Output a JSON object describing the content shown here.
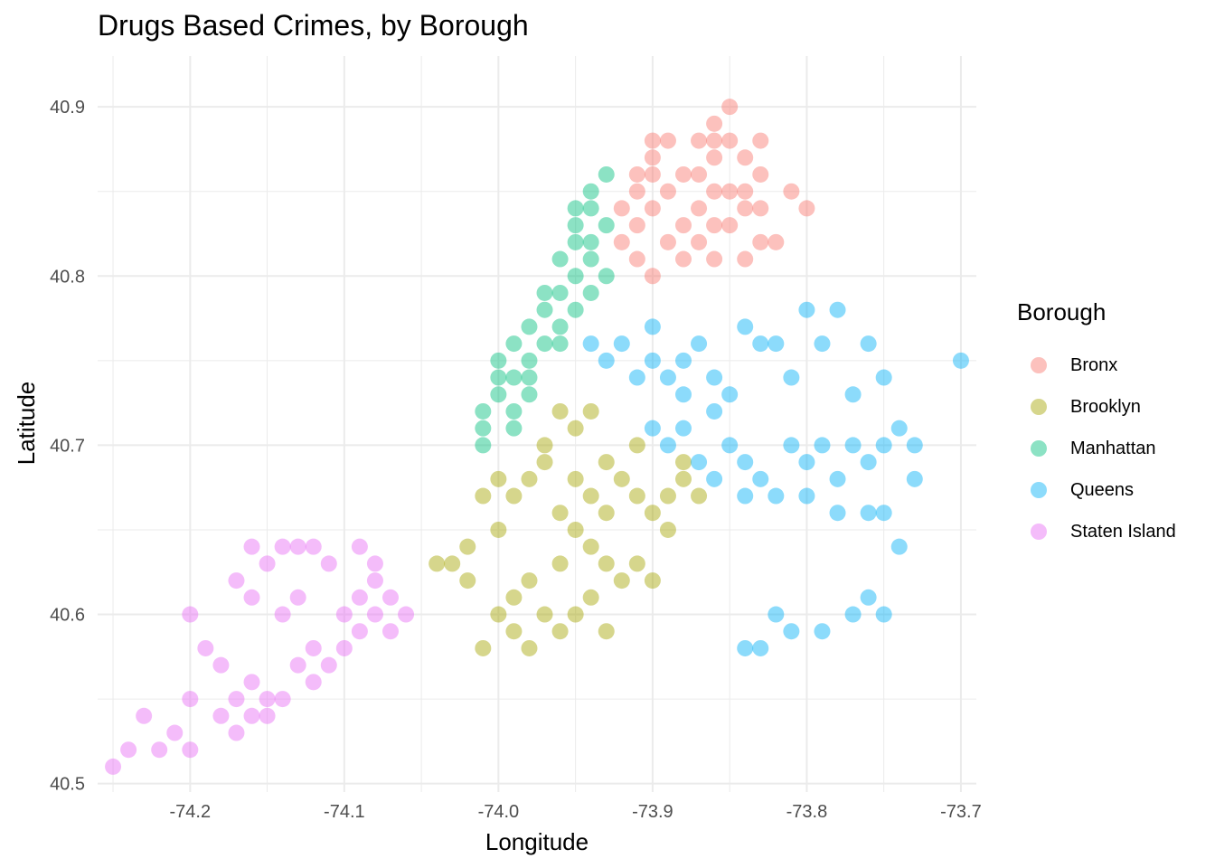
{
  "title": "Drugs Based Crimes, by Borough",
  "chart_data": {
    "type": "scatter",
    "title": "Drugs Based Crimes, by Borough",
    "xlabel": "Longitude",
    "ylabel": "Latitude",
    "xlim": [
      -74.26,
      -73.69
    ],
    "ylim": [
      40.495,
      40.93
    ],
    "x_ticks": [
      -74.2,
      -74.1,
      -74.0,
      -73.9,
      -73.8,
      -73.7
    ],
    "x_tick_labels": [
      "-74.2",
      "-74.1",
      "-74.0",
      "-73.9",
      "-73.8",
      "-73.7"
    ],
    "y_ticks": [
      40.5,
      40.6,
      40.7,
      40.8,
      40.9
    ],
    "y_tick_labels": [
      "40.5",
      "40.6",
      "40.7",
      "40.8",
      "40.9"
    ],
    "grid": true,
    "legend_title": "Borough",
    "legend_position": "right",
    "series": [
      {
        "name": "Bronx",
        "color": "#F8766D",
        "points": [
          [
            -73.91,
            40.83
          ],
          [
            -73.9,
            40.84
          ],
          [
            -73.89,
            40.85
          ],
          [
            -73.88,
            40.86
          ],
          [
            -73.87,
            40.86
          ],
          [
            -73.86,
            40.87
          ],
          [
            -73.85,
            40.88
          ],
          [
            -73.86,
            40.89
          ],
          [
            -73.85,
            40.9
          ],
          [
            -73.86,
            40.88
          ],
          [
            -73.89,
            40.88
          ],
          [
            -73.9,
            40.88
          ],
          [
            -73.88,
            40.83
          ],
          [
            -73.87,
            40.82
          ],
          [
            -73.86,
            40.83
          ],
          [
            -73.85,
            40.83
          ],
          [
            -73.84,
            40.84
          ],
          [
            -73.83,
            40.82
          ],
          [
            -73.84,
            40.85
          ],
          [
            -73.83,
            40.86
          ],
          [
            -73.84,
            40.87
          ],
          [
            -73.83,
            40.88
          ],
          [
            -73.92,
            40.82
          ],
          [
            -73.91,
            40.81
          ],
          [
            -73.9,
            40.8
          ],
          [
            -73.92,
            40.84
          ],
          [
            -73.91,
            40.86
          ],
          [
            -73.89,
            40.82
          ],
          [
            -73.87,
            40.84
          ],
          [
            -73.86,
            40.85
          ],
          [
            -73.85,
            40.85
          ],
          [
            -73.83,
            40.84
          ],
          [
            -73.82,
            40.82
          ],
          [
            -73.81,
            40.85
          ],
          [
            -73.8,
            40.84
          ],
          [
            -73.88,
            40.81
          ],
          [
            -73.86,
            40.81
          ],
          [
            -73.84,
            40.81
          ],
          [
            -73.9,
            40.86
          ],
          [
            -73.87,
            40.88
          ],
          [
            -73.91,
            40.85
          ],
          [
            -73.9,
            40.87
          ]
        ]
      },
      {
        "name": "Brooklyn",
        "color": "#A3A500",
        "points": [
          [
            -73.95,
            40.68
          ],
          [
            -73.94,
            40.67
          ],
          [
            -73.96,
            40.66
          ],
          [
            -73.95,
            40.65
          ],
          [
            -73.97,
            40.69
          ],
          [
            -73.98,
            40.68
          ],
          [
            -73.99,
            40.67
          ],
          [
            -74.0,
            40.68
          ],
          [
            -74.01,
            40.67
          ],
          [
            -73.93,
            40.69
          ],
          [
            -73.92,
            40.68
          ],
          [
            -73.91,
            40.67
          ],
          [
            -73.9,
            40.66
          ],
          [
            -73.89,
            40.67
          ],
          [
            -73.88,
            40.68
          ],
          [
            -73.87,
            40.67
          ],
          [
            -73.95,
            40.71
          ],
          [
            -73.94,
            40.72
          ],
          [
            -73.96,
            40.72
          ],
          [
            -73.97,
            40.7
          ],
          [
            -73.96,
            40.63
          ],
          [
            -73.98,
            40.62
          ],
          [
            -73.99,
            40.61
          ],
          [
            -74.0,
            40.6
          ],
          [
            -73.99,
            40.59
          ],
          [
            -73.98,
            40.58
          ],
          [
            -74.01,
            40.58
          ],
          [
            -73.97,
            40.6
          ],
          [
            -73.96,
            40.59
          ],
          [
            -74.02,
            40.62
          ],
          [
            -74.03,
            40.63
          ],
          [
            -74.04,
            40.63
          ],
          [
            -74.02,
            40.64
          ],
          [
            -74.0,
            40.65
          ],
          [
            -73.94,
            40.64
          ],
          [
            -73.93,
            40.63
          ],
          [
            -73.92,
            40.62
          ],
          [
            -73.91,
            40.63
          ],
          [
            -73.9,
            40.62
          ],
          [
            -73.89,
            40.65
          ],
          [
            -73.93,
            40.66
          ],
          [
            -73.91,
            40.7
          ],
          [
            -73.94,
            40.61
          ],
          [
            -73.95,
            40.6
          ],
          [
            -73.93,
            40.59
          ],
          [
            -73.88,
            40.69
          ]
        ]
      },
      {
        "name": "Manhattan",
        "color": "#00BF7D",
        "points": [
          [
            -73.93,
            40.86
          ],
          [
            -73.94,
            40.85
          ],
          [
            -73.95,
            40.84
          ],
          [
            -73.95,
            40.83
          ],
          [
            -73.94,
            40.82
          ],
          [
            -73.96,
            40.81
          ],
          [
            -73.95,
            40.8
          ],
          [
            -73.96,
            40.79
          ],
          [
            -73.97,
            40.78
          ],
          [
            -73.98,
            40.77
          ],
          [
            -73.99,
            40.76
          ],
          [
            -73.98,
            40.75
          ],
          [
            -74.0,
            40.74
          ],
          [
            -74.0,
            40.73
          ],
          [
            -74.01,
            40.72
          ],
          [
            -74.01,
            40.71
          ],
          [
            -74.01,
            40.7
          ],
          [
            -73.99,
            40.72
          ],
          [
            -73.98,
            40.73
          ],
          [
            -73.99,
            40.74
          ],
          [
            -73.97,
            40.76
          ],
          [
            -73.96,
            40.77
          ],
          [
            -73.94,
            40.79
          ],
          [
            -73.93,
            40.8
          ],
          [
            -73.95,
            40.78
          ],
          [
            -73.96,
            40.76
          ],
          [
            -73.94,
            40.84
          ],
          [
            -73.93,
            40.83
          ],
          [
            -73.94,
            40.81
          ],
          [
            -74.0,
            40.75
          ],
          [
            -73.99,
            40.71
          ],
          [
            -73.98,
            40.74
          ],
          [
            -73.95,
            40.82
          ],
          [
            -73.97,
            40.79
          ]
        ]
      },
      {
        "name": "Queens",
        "color": "#00B0F6",
        "points": [
          [
            -73.9,
            40.75
          ],
          [
            -73.88,
            40.75
          ],
          [
            -73.87,
            40.76
          ],
          [
            -73.89,
            40.74
          ],
          [
            -73.91,
            40.74
          ],
          [
            -73.92,
            40.76
          ],
          [
            -73.93,
            40.75
          ],
          [
            -73.94,
            40.76
          ],
          [
            -73.9,
            40.77
          ],
          [
            -73.88,
            40.73
          ],
          [
            -73.86,
            40.74
          ],
          [
            -73.85,
            40.73
          ],
          [
            -73.83,
            40.76
          ],
          [
            -73.82,
            40.76
          ],
          [
            -73.84,
            40.77
          ],
          [
            -73.85,
            40.7
          ],
          [
            -73.84,
            40.69
          ],
          [
            -73.83,
            40.68
          ],
          [
            -73.81,
            40.7
          ],
          [
            -73.8,
            40.69
          ],
          [
            -73.79,
            40.7
          ],
          [
            -73.78,
            40.68
          ],
          [
            -73.77,
            40.7
          ],
          [
            -73.76,
            40.69
          ],
          [
            -73.75,
            40.7
          ],
          [
            -73.74,
            40.71
          ],
          [
            -73.73,
            40.7
          ],
          [
            -73.86,
            40.68
          ],
          [
            -73.87,
            40.69
          ],
          [
            -73.89,
            40.7
          ],
          [
            -73.9,
            40.71
          ],
          [
            -73.88,
            40.71
          ],
          [
            -73.86,
            40.72
          ],
          [
            -73.84,
            40.67
          ],
          [
            -73.82,
            40.67
          ],
          [
            -73.8,
            40.67
          ],
          [
            -73.78,
            40.66
          ],
          [
            -73.76,
            40.66
          ],
          [
            -73.75,
            40.66
          ],
          [
            -73.82,
            40.6
          ],
          [
            -73.81,
            40.59
          ],
          [
            -73.79,
            40.59
          ],
          [
            -73.77,
            40.6
          ],
          [
            -73.76,
            40.61
          ],
          [
            -73.75,
            40.6
          ],
          [
            -73.83,
            40.58
          ],
          [
            -73.84,
            40.58
          ],
          [
            -73.78,
            40.78
          ],
          [
            -73.79,
            40.76
          ],
          [
            -73.77,
            40.73
          ],
          [
            -73.75,
            40.74
          ],
          [
            -73.7,
            40.75
          ],
          [
            -73.8,
            40.78
          ],
          [
            -73.81,
            40.74
          ],
          [
            -73.76,
            40.76
          ],
          [
            -73.74,
            40.64
          ],
          [
            -73.73,
            40.68
          ]
        ]
      },
      {
        "name": "Staten Island",
        "color": "#E76BF3",
        "points": [
          [
            -74.16,
            40.64
          ],
          [
            -74.15,
            40.63
          ],
          [
            -74.14,
            40.64
          ],
          [
            -74.13,
            40.64
          ],
          [
            -74.12,
            40.64
          ],
          [
            -74.11,
            40.63
          ],
          [
            -74.17,
            40.62
          ],
          [
            -74.16,
            40.61
          ],
          [
            -74.09,
            40.64
          ],
          [
            -74.08,
            40.63
          ],
          [
            -74.08,
            40.62
          ],
          [
            -74.09,
            40.61
          ],
          [
            -74.08,
            40.6
          ],
          [
            -74.09,
            40.59
          ],
          [
            -74.1,
            40.58
          ],
          [
            -74.11,
            40.57
          ],
          [
            -74.12,
            40.56
          ],
          [
            -74.07,
            40.61
          ],
          [
            -74.06,
            40.6
          ],
          [
            -74.07,
            40.59
          ],
          [
            -74.16,
            40.56
          ],
          [
            -74.15,
            40.55
          ],
          [
            -74.17,
            40.55
          ],
          [
            -74.16,
            40.54
          ],
          [
            -74.14,
            40.55
          ],
          [
            -74.18,
            40.57
          ],
          [
            -74.19,
            40.58
          ],
          [
            -74.2,
            40.55
          ],
          [
            -74.21,
            40.53
          ],
          [
            -74.22,
            40.52
          ],
          [
            -74.24,
            40.52
          ],
          [
            -74.25,
            40.51
          ],
          [
            -74.17,
            40.53
          ],
          [
            -74.18,
            40.54
          ],
          [
            -74.13,
            40.61
          ],
          [
            -74.14,
            40.6
          ],
          [
            -74.12,
            40.58
          ],
          [
            -74.1,
            40.6
          ],
          [
            -74.2,
            40.6
          ],
          [
            -74.15,
            40.54
          ],
          [
            -74.13,
            40.57
          ],
          [
            -74.23,
            40.54
          ],
          [
            -74.2,
            40.52
          ]
        ]
      }
    ]
  }
}
